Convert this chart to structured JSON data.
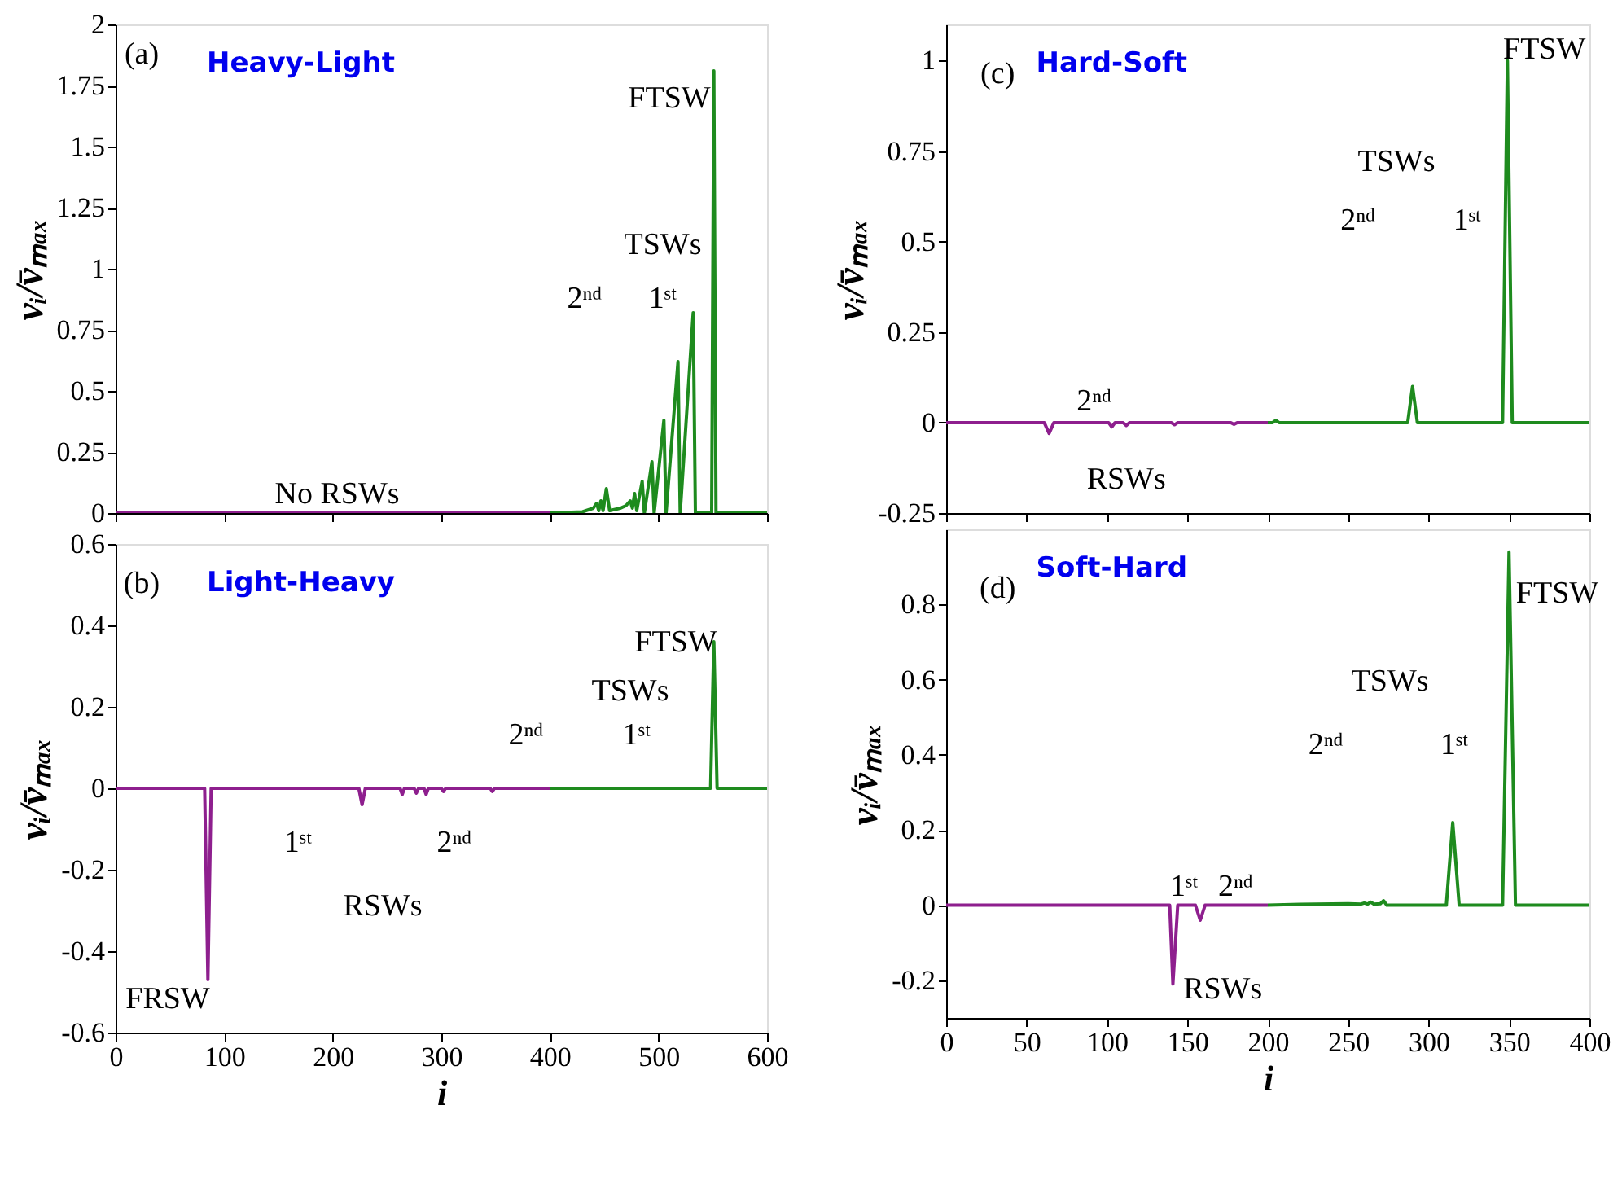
{
  "chart_data": [
    {
      "type": "line",
      "title": "Heavy-Light",
      "ylabel": "vᵢ/v̄ₘₐₓ",
      "xlim": [
        0,
        600
      ],
      "ylim": [
        0,
        2
      ],
      "xticks": [
        0,
        100,
        200,
        300,
        400,
        500,
        600
      ],
      "yticks": [
        0,
        0.25,
        0.5,
        0.75,
        1,
        1.25,
        1.5,
        1.75,
        2
      ],
      "tick_labels": "y",
      "grid": false,
      "series": [
        {
          "color": "#8e1f8e",
          "x": [
            0,
            400
          ],
          "values": [
            0,
            0
          ]
        },
        {
          "color": "#1e8b1e",
          "x": [
            400,
            430,
            440,
            443,
            445,
            447,
            449,
            452,
            455,
            465,
            470,
            474,
            476,
            478,
            480,
            485,
            487,
            494,
            496,
            505,
            507,
            518,
            520,
            532,
            534,
            549,
            551,
            553,
            600
          ],
          "values": [
            0,
            0.005,
            0.02,
            0.04,
            0.01,
            0.05,
            0.01,
            0.1,
            0.01,
            0.02,
            0.03,
            0.05,
            0.02,
            0.08,
            0.01,
            0.13,
            0,
            0.21,
            0,
            0.38,
            0,
            0.62,
            0,
            0.82,
            0,
            0,
            1.81,
            0,
            0
          ]
        }
      ],
      "annotations": [
        "(a)",
        "FTSW",
        "TSWs",
        "2ⁿᵈ",
        "1ˢᵗ",
        "No RSWs"
      ]
    },
    {
      "type": "line",
      "title": "Light-Heavy",
      "xlabel": "i",
      "ylabel": "vᵢ/v̄ₘₐₓ",
      "xlim": [
        0,
        600
      ],
      "ylim": [
        -0.6,
        0.6
      ],
      "xticks": [
        0,
        100,
        200,
        300,
        400,
        500,
        600
      ],
      "yticks": [
        -0.6,
        -0.4,
        -0.2,
        0,
        0.2,
        0.4,
        0.6
      ],
      "grid": false,
      "series": [
        {
          "color": "#8e1f8e",
          "x": [
            0,
            82,
            85,
            88,
            224,
            227,
            230,
            262,
            264,
            266,
            275,
            277,
            279,
            284,
            286,
            288,
            300,
            302,
            304,
            345,
            347,
            349,
            400
          ],
          "values": [
            0,
            0,
            -0.47,
            0,
            0,
            -0.04,
            0,
            0,
            -0.015,
            0,
            0,
            -0.012,
            0,
            0,
            -0.015,
            0,
            0,
            -0.008,
            0,
            0,
            -0.008,
            0,
            0
          ]
        },
        {
          "color": "#1e8b1e",
          "x": [
            400,
            548,
            551,
            554,
            600
          ],
          "values": [
            0,
            0,
            0.36,
            0,
            0
          ]
        }
      ],
      "annotations": [
        "(b)",
        "FTSW",
        "TSWs",
        "2ⁿᵈ",
        "1ˢᵗ",
        "1ˢᵗ",
        "2ⁿᵈ",
        "RSWs",
        "FRSW"
      ]
    },
    {
      "type": "line",
      "title": "Hard-Soft",
      "ylabel": "vᵢ/v̄ₘₐₓ",
      "xlim": [
        0,
        400
      ],
      "ylim": [
        -0.25,
        1.1
      ],
      "xticks": [
        0,
        50,
        100,
        150,
        200,
        250,
        300,
        350,
        400
      ],
      "yticks": [
        -0.25,
        0,
        0.25,
        0.5,
        0.75,
        1
      ],
      "tick_labels": "y",
      "grid": false,
      "series": [
        {
          "color": "#8e1f8e",
          "x": [
            0,
            61,
            64,
            67,
            101,
            103,
            105,
            110,
            112,
            114,
            140,
            142,
            144,
            177,
            179,
            181,
            200
          ],
          "values": [
            0,
            0,
            -0.03,
            0,
            0,
            -0.012,
            0,
            0,
            -0.008,
            0,
            0,
            -0.006,
            0,
            0,
            -0.005,
            0,
            0
          ]
        },
        {
          "color": "#1e8b1e",
          "x": [
            200,
            203,
            205,
            207,
            287,
            290,
            293,
            346,
            349,
            352,
            400
          ],
          "values": [
            0,
            0,
            0.006,
            0,
            0,
            0.1,
            0,
            0,
            1.0,
            0,
            0
          ]
        }
      ],
      "annotations": [
        "(c)",
        "FTSW",
        "TSWs",
        "2ⁿᵈ",
        "1ˢᵗ",
        "2ⁿᵈ",
        "RSWs"
      ]
    },
    {
      "type": "line",
      "title": "Soft-Hard",
      "xlabel": "i",
      "ylabel": "vᵢ/v̄ₘₐₓ",
      "xlim": [
        0,
        400
      ],
      "ylim": [
        -0.3,
        1.0
      ],
      "xticks": [
        0,
        50,
        100,
        150,
        200,
        250,
        300,
        350,
        400
      ],
      "yticks": [
        -0.2,
        0,
        0.2,
        0.4,
        0.6,
        0.8
      ],
      "grid": false,
      "series": [
        {
          "color": "#8e1f8e",
          "x": [
            0,
            139,
            141,
            144,
            155,
            158,
            161,
            200
          ],
          "values": [
            0,
            0,
            -0.21,
            0,
            0,
            -0.04,
            0,
            0
          ]
        },
        {
          "color": "#1e8b1e",
          "x": [
            200,
            220,
            250,
            258,
            260,
            262,
            264,
            266,
            270,
            272,
            274,
            311,
            315,
            319,
            346,
            350,
            354,
            400
          ],
          "values": [
            0,
            0.002,
            0.004,
            0.003,
            0.006,
            0.003,
            0.008,
            0.003,
            0.004,
            0.012,
            0,
            0,
            0.22,
            0,
            0,
            0.94,
            0,
            0
          ]
        }
      ],
      "annotations": [
        "(d)",
        "FTSW",
        "TSWs",
        "2ⁿᵈ",
        "1ˢᵗ",
        "1ˢᵗ",
        "2ⁿᵈ",
        "RSWs"
      ]
    }
  ]
}
